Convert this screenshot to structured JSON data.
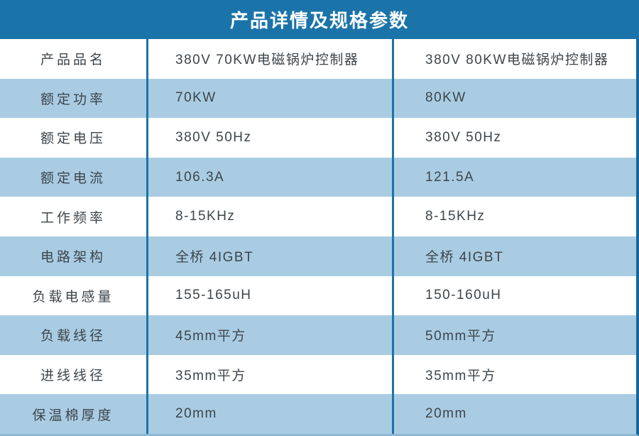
{
  "title": "产品详情及规格参数",
  "colors": {
    "header_bg": "#1b74a9",
    "title_text": "#ffffff",
    "row_bg": "#ffffff",
    "row_alt_bg": "#a9cce3",
    "divider": "#1b74a9",
    "edge_border": "#15689e",
    "bottom_line": "#8eb7d3",
    "text": "#3e454b"
  },
  "table": {
    "columns": [
      "parameter",
      "product_70kw",
      "product_80kw"
    ],
    "rows": [
      {
        "label": "产品品名",
        "col2": "380V 70KW电磁锅炉控制器",
        "col3": "380V 80KW电磁锅炉控制器"
      },
      {
        "label": "额定功率",
        "col2": "70KW",
        "col3": "80KW"
      },
      {
        "label": "额定电压",
        "col2": "380V 50Hz",
        "col3": "380V 50Hz"
      },
      {
        "label": "额定电流",
        "col2": "106.3A",
        "col3": "121.5A"
      },
      {
        "label": "工作频率",
        "col2": "8-15KHz",
        "col3": "8-15KHz"
      },
      {
        "label": "电路架构",
        "col2": "全桥 4IGBT",
        "col3": "全桥 4IGBT"
      },
      {
        "label": "负载电感量",
        "col2": "155-165uH",
        "col3": "150-160uH"
      },
      {
        "label": "负载线径",
        "col2": "45mm平方",
        "col3": "50mm平方"
      },
      {
        "label": "进线线径",
        "col2": "35mm平方",
        "col3": "35mm平方"
      },
      {
        "label": "保温棉厚度",
        "col2": "20mm",
        "col3": "20mm"
      }
    ]
  }
}
